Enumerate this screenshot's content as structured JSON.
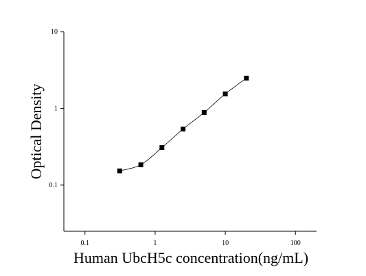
{
  "chart_data": {
    "type": "scatter",
    "log_x": true,
    "log_y": true,
    "x_label": "Human UbcH5c concentration(ng/mL)",
    "y_label": "Optical Density",
    "xlim": [
      0.05,
      200
    ],
    "ylim": [
      0.025,
      10
    ],
    "xticks": [
      0.1,
      1,
      10,
      100
    ],
    "yticks": [
      0.1,
      1,
      10
    ],
    "color": "#000000",
    "x": [
      0.3125,
      0.625,
      1.25,
      2.5,
      5,
      10,
      20
    ],
    "series": [
      {
        "values": [
          0.153,
          0.184,
          0.308,
          0.538,
          0.883,
          1.542,
          2.48
        ]
      }
    ]
  }
}
